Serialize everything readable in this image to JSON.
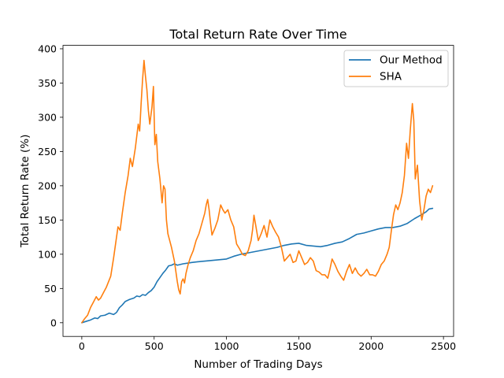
{
  "chart_data": {
    "type": "line",
    "title": "Total Return Rate Over Time",
    "xlabel": "Number of Trading Days",
    "ylabel": "Total Return Rate (%)",
    "xlim": [
      -130,
      2570
    ],
    "ylim": [
      -20,
      405
    ],
    "xticks": [
      0,
      500,
      1000,
      1500,
      2000,
      2500
    ],
    "yticks": [
      0,
      50,
      100,
      150,
      200,
      250,
      300,
      350,
      400
    ],
    "grid": false,
    "legend_position": "top-right",
    "series": [
      {
        "name": "Our Method",
        "color": "#1f77b4",
        "points": [
          [
            0,
            0
          ],
          [
            30,
            2
          ],
          [
            60,
            4
          ],
          [
            90,
            7
          ],
          [
            110,
            6
          ],
          [
            130,
            10
          ],
          [
            160,
            11
          ],
          [
            190,
            14
          ],
          [
            220,
            12
          ],
          [
            240,
            15
          ],
          [
            260,
            22
          ],
          [
            280,
            26
          ],
          [
            300,
            31
          ],
          [
            330,
            34
          ],
          [
            360,
            36
          ],
          [
            380,
            39
          ],
          [
            400,
            38
          ],
          [
            420,
            41
          ],
          [
            440,
            40
          ],
          [
            460,
            44
          ],
          [
            480,
            47
          ],
          [
            500,
            52
          ],
          [
            520,
            60
          ],
          [
            540,
            66
          ],
          [
            560,
            72
          ],
          [
            580,
            77
          ],
          [
            600,
            83
          ],
          [
            620,
            84
          ],
          [
            640,
            86
          ],
          [
            660,
            84
          ],
          [
            680,
            85
          ],
          [
            700,
            86
          ],
          [
            730,
            87
          ],
          [
            760,
            88
          ],
          [
            800,
            89
          ],
          [
            850,
            90
          ],
          [
            900,
            91
          ],
          [
            950,
            92
          ],
          [
            1000,
            93
          ],
          [
            1050,
            97
          ],
          [
            1100,
            100
          ],
          [
            1150,
            102
          ],
          [
            1200,
            104
          ],
          [
            1250,
            106
          ],
          [
            1300,
            108
          ],
          [
            1350,
            110
          ],
          [
            1400,
            113
          ],
          [
            1450,
            115
          ],
          [
            1500,
            116
          ],
          [
            1550,
            113
          ],
          [
            1600,
            112
          ],
          [
            1650,
            111
          ],
          [
            1700,
            113
          ],
          [
            1750,
            116
          ],
          [
            1800,
            118
          ],
          [
            1850,
            123
          ],
          [
            1900,
            129
          ],
          [
            1950,
            131
          ],
          [
            2000,
            134
          ],
          [
            2050,
            137
          ],
          [
            2100,
            139
          ],
          [
            2150,
            139
          ],
          [
            2200,
            141
          ],
          [
            2250,
            145
          ],
          [
            2300,
            152
          ],
          [
            2350,
            158
          ],
          [
            2380,
            162
          ],
          [
            2400,
            166
          ],
          [
            2425,
            167
          ]
        ]
      },
      {
        "name": "SHA",
        "color": "#ff7f0e",
        "points": [
          [
            0,
            0
          ],
          [
            20,
            6
          ],
          [
            40,
            11
          ],
          [
            60,
            22
          ],
          [
            80,
            30
          ],
          [
            100,
            38
          ],
          [
            115,
            33
          ],
          [
            130,
            36
          ],
          [
            150,
            44
          ],
          [
            170,
            52
          ],
          [
            200,
            68
          ],
          [
            220,
            95
          ],
          [
            240,
            125
          ],
          [
            250,
            140
          ],
          [
            265,
            135
          ],
          [
            280,
            160
          ],
          [
            300,
            190
          ],
          [
            320,
            215
          ],
          [
            335,
            240
          ],
          [
            350,
            228
          ],
          [
            370,
            255
          ],
          [
            390,
            290
          ],
          [
            400,
            280
          ],
          [
            410,
            320
          ],
          [
            420,
            355
          ],
          [
            430,
            383
          ],
          [
            440,
            360
          ],
          [
            450,
            340
          ],
          [
            460,
            310
          ],
          [
            470,
            290
          ],
          [
            485,
            315
          ],
          [
            495,
            345
          ],
          [
            505,
            260
          ],
          [
            515,
            275
          ],
          [
            525,
            235
          ],
          [
            540,
            210
          ],
          [
            555,
            175
          ],
          [
            565,
            200
          ],
          [
            575,
            195
          ],
          [
            585,
            150
          ],
          [
            595,
            130
          ],
          [
            605,
            122
          ],
          [
            620,
            110
          ],
          [
            640,
            90
          ],
          [
            660,
            60
          ],
          [
            670,
            48
          ],
          [
            680,
            42
          ],
          [
            690,
            60
          ],
          [
            700,
            64
          ],
          [
            710,
            58
          ],
          [
            720,
            72
          ],
          [
            735,
            85
          ],
          [
            750,
            95
          ],
          [
            770,
            105
          ],
          [
            790,
            120
          ],
          [
            810,
            130
          ],
          [
            830,
            145
          ],
          [
            850,
            160
          ],
          [
            860,
            172
          ],
          [
            870,
            180
          ],
          [
            880,
            165
          ],
          [
            890,
            145
          ],
          [
            900,
            128
          ],
          [
            920,
            138
          ],
          [
            940,
            150
          ],
          [
            960,
            172
          ],
          [
            975,
            165
          ],
          [
            990,
            160
          ],
          [
            1010,
            165
          ],
          [
            1030,
            150
          ],
          [
            1050,
            140
          ],
          [
            1070,
            115
          ],
          [
            1090,
            108
          ],
          [
            1110,
            100
          ],
          [
            1130,
            98
          ],
          [
            1150,
            105
          ],
          [
            1170,
            120
          ],
          [
            1180,
            135
          ],
          [
            1190,
            157
          ],
          [
            1200,
            145
          ],
          [
            1220,
            120
          ],
          [
            1240,
            130
          ],
          [
            1260,
            142
          ],
          [
            1280,
            125
          ],
          [
            1300,
            150
          ],
          [
            1320,
            140
          ],
          [
            1340,
            132
          ],
          [
            1360,
            125
          ],
          [
            1380,
            110
          ],
          [
            1400,
            90
          ],
          [
            1420,
            95
          ],
          [
            1440,
            100
          ],
          [
            1460,
            88
          ],
          [
            1480,
            90
          ],
          [
            1500,
            105
          ],
          [
            1520,
            95
          ],
          [
            1540,
            85
          ],
          [
            1560,
            88
          ],
          [
            1580,
            95
          ],
          [
            1600,
            90
          ],
          [
            1620,
            76
          ],
          [
            1640,
            74
          ],
          [
            1660,
            70
          ],
          [
            1680,
            70
          ],
          [
            1700,
            65
          ],
          [
            1715,
            78
          ],
          [
            1730,
            93
          ],
          [
            1750,
            85
          ],
          [
            1770,
            75
          ],
          [
            1790,
            68
          ],
          [
            1810,
            62
          ],
          [
            1830,
            75
          ],
          [
            1850,
            85
          ],
          [
            1870,
            72
          ],
          [
            1890,
            80
          ],
          [
            1910,
            72
          ],
          [
            1930,
            68
          ],
          [
            1950,
            72
          ],
          [
            1970,
            78
          ],
          [
            1990,
            70
          ],
          [
            2010,
            70
          ],
          [
            2030,
            68
          ],
          [
            2050,
            75
          ],
          [
            2070,
            85
          ],
          [
            2090,
            90
          ],
          [
            2110,
            100
          ],
          [
            2125,
            110
          ],
          [
            2140,
            135
          ],
          [
            2155,
            158
          ],
          [
            2170,
            172
          ],
          [
            2185,
            165
          ],
          [
            2200,
            175
          ],
          [
            2215,
            190
          ],
          [
            2230,
            215
          ],
          [
            2245,
            262
          ],
          [
            2258,
            240
          ],
          [
            2270,
            280
          ],
          [
            2285,
            320
          ],
          [
            2295,
            295
          ],
          [
            2305,
            210
          ],
          [
            2320,
            230
          ],
          [
            2335,
            178
          ],
          [
            2350,
            150
          ],
          [
            2365,
            165
          ],
          [
            2380,
            185
          ],
          [
            2395,
            195
          ],
          [
            2410,
            190
          ],
          [
            2425,
            200
          ]
        ]
      }
    ]
  }
}
